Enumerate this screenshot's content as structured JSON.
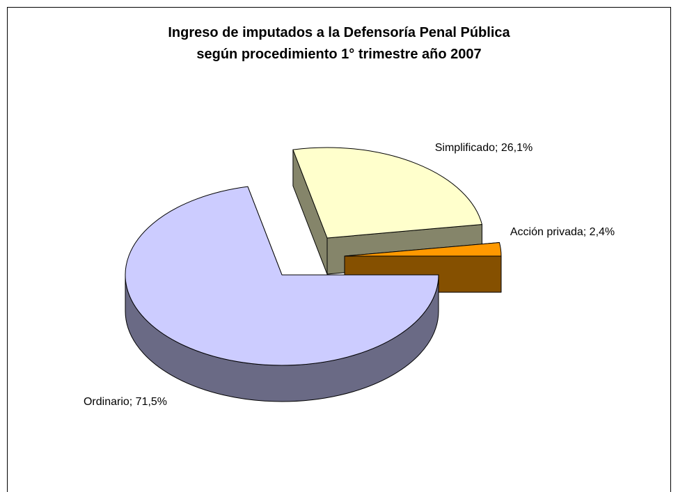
{
  "chart_data": {
    "type": "pie",
    "title": "Ingreso de imputados a la Defensoría Penal Pública según procedimiento 1° trimestre año 2007",
    "values": [
      71.5,
      26.1,
      2.4
    ],
    "value_labels": [
      "Ordinario; 71,5%",
      "Simplificado; 26,1%",
      "Acción privada; 2,4%"
    ],
    "colors": [
      "#ccccff",
      "#ffffcc",
      "#ff9900"
    ],
    "three_d": true
  }
}
